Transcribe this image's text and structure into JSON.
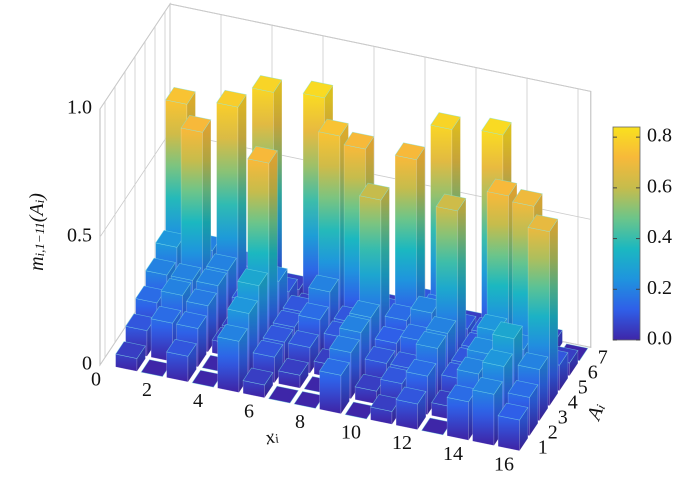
{
  "chart_data": {
    "type": "bar3d",
    "x": [
      1,
      2,
      3,
      4,
      5,
      6,
      7,
      8,
      9,
      10,
      11,
      12,
      13,
      14,
      15,
      16
    ],
    "y": [
      1,
      2,
      3,
      4,
      5,
      6,
      7
    ],
    "values": [
      [
        0.05,
        0,
        0.1,
        0,
        0.2,
        0.05,
        0,
        0,
        0.15,
        0,
        0.05,
        0.1,
        0,
        0.15,
        0.2,
        0.12
      ],
      [
        0.1,
        0.15,
        0.15,
        0,
        0.25,
        0.1,
        0.05,
        0,
        0.18,
        0.05,
        0.1,
        0.15,
        0.05,
        0.2,
        0.25,
        0.15
      ],
      [
        0.15,
        0.2,
        0.18,
        0.05,
        0.3,
        0.1,
        0.1,
        0.05,
        0.2,
        0.1,
        0.1,
        0.2,
        0.1,
        0.22,
        0.3,
        0.2
      ],
      [
        0.2,
        0.2,
        0.2,
        0.05,
        0.72,
        0.1,
        0.15,
        0.1,
        0.2,
        0.12,
        0.15,
        0.2,
        0.1,
        0.25,
        0.2,
        0.68
      ],
      [
        0.25,
        0.72,
        0.2,
        0.1,
        0.2,
        0.1,
        0.2,
        0.1,
        0.6,
        0.15,
        0.2,
        0.62,
        0.1,
        0.72,
        0.7,
        0.1
      ],
      [
        0.75,
        0.2,
        0.78,
        0.1,
        0.1,
        0.05,
        0.75,
        0.72,
        0.1,
        0.72,
        0.15,
        0.1,
        0.1,
        0.1,
        0.1,
        0.05
      ],
      [
        0.1,
        0.1,
        0.1,
        0.8,
        0.05,
        0.82,
        0.1,
        0.1,
        0.05,
        0.1,
        0.8,
        0.05,
        0.82,
        0.05,
        0.05,
        0
      ]
    ],
    "xlim": [
      0,
      16.5
    ],
    "xticks": [
      0,
      2,
      4,
      6,
      8,
      10,
      12,
      14,
      16
    ],
    "ylim": [
      0.5,
      7.5
    ],
    "yticks": [
      1,
      2,
      3,
      4,
      5,
      6,
      7
    ],
    "zlim": [
      0,
      1
    ],
    "zticks": [
      0,
      0.5,
      {
        "value": 1,
        "label": "1.0"
      }
    ],
    "xlabel": [
      "x",
      "i"
    ],
    "ylabel": [
      "A",
      "i"
    ],
    "zlabel": [
      "m",
      "i,1−11",
      "(A",
      "i",
      ")"
    ],
    "colormap": [
      "#3e26a8",
      "#2f5fe8",
      "#1f94de",
      "#1bb8c0",
      "#6cc58a",
      "#c6bc4c",
      "#f7b93a",
      "#f9e11e"
    ],
    "clim": [
      0,
      0.84
    ],
    "cticks": [
      {
        "value": 0,
        "label": "0.0"
      },
      0.2,
      0.4,
      0.6,
      0.8
    ],
    "grid": true
  }
}
